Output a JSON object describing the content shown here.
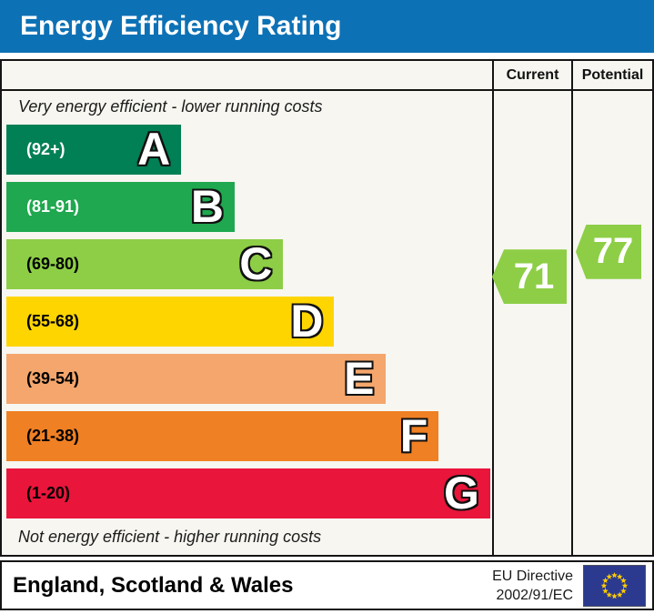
{
  "title": "Energy Efficiency Rating",
  "header": {
    "current": "Current",
    "potential": "Potential"
  },
  "notes": {
    "top": "Very energy efficient - lower running costs",
    "bottom": "Not energy efficient - higher running costs"
  },
  "bands": [
    {
      "letter": "A",
      "range": "(92+)",
      "min": 92,
      "max": 100,
      "color": "#008054",
      "label_color": "#ffffff",
      "width_pct": 36
    },
    {
      "letter": "B",
      "range": "(81-91)",
      "min": 81,
      "max": 91,
      "color": "#1fa84f",
      "label_color": "#ffffff",
      "width_pct": 47
    },
    {
      "letter": "C",
      "range": "(69-80)",
      "min": 69,
      "max": 80,
      "color": "#8dce46",
      "label_color": "#000000",
      "width_pct": 57
    },
    {
      "letter": "D",
      "range": "(55-68)",
      "min": 55,
      "max": 68,
      "color": "#ffd500",
      "label_color": "#000000",
      "width_pct": 67.5
    },
    {
      "letter": "E",
      "range": "(39-54)",
      "min": 39,
      "max": 54,
      "color": "#f4a66c",
      "label_color": "#000000",
      "width_pct": 78
    },
    {
      "letter": "F",
      "range": "(21-38)",
      "min": 21,
      "max": 38,
      "color": "#ef8023",
      "label_color": "#000000",
      "width_pct": 89
    },
    {
      "letter": "G",
      "range": "(1-20)",
      "min": 1,
      "max": 20,
      "color": "#e9153b",
      "label_color": "#000000",
      "width_pct": 99.6
    }
  ],
  "ratings": {
    "current": {
      "value": 71,
      "color": "#8dce46"
    },
    "potential": {
      "value": 77,
      "color": "#8dce46"
    }
  },
  "footer": {
    "region": "England, Scotland & Wales",
    "directive": [
      "EU Directive",
      "2002/91/EC"
    ]
  },
  "theme": {
    "title_bg": "#0d71b5",
    "border": "#151515",
    "flag_bg": "#2b3a8f",
    "flag_star": "#ffcc00"
  },
  "chart_data": {
    "type": "bar",
    "title": "Energy Efficiency Rating",
    "categories": [
      "A",
      "B",
      "C",
      "D",
      "E",
      "F",
      "G"
    ],
    "band_ranges": [
      "92+",
      "81-91",
      "69-80",
      "55-68",
      "39-54",
      "21-38",
      "1-20"
    ],
    "band_colors": [
      "#008054",
      "#1fa84f",
      "#8dce46",
      "#ffd500",
      "#f4a66c",
      "#ef8023",
      "#e9153b"
    ],
    "bar_lengths_pct": [
      36,
      47,
      57,
      67.5,
      78,
      89,
      99.6
    ],
    "current_rating": 71,
    "potential_rating": 77,
    "current_band": "C",
    "potential_band": "C",
    "annotations": [
      "Very energy efficient - lower running costs",
      "Not energy efficient - higher running costs"
    ],
    "columns": [
      "Current",
      "Potential"
    ],
    "region": "England, Scotland & Wales",
    "directive": "EU Directive 2002/91/EC"
  }
}
